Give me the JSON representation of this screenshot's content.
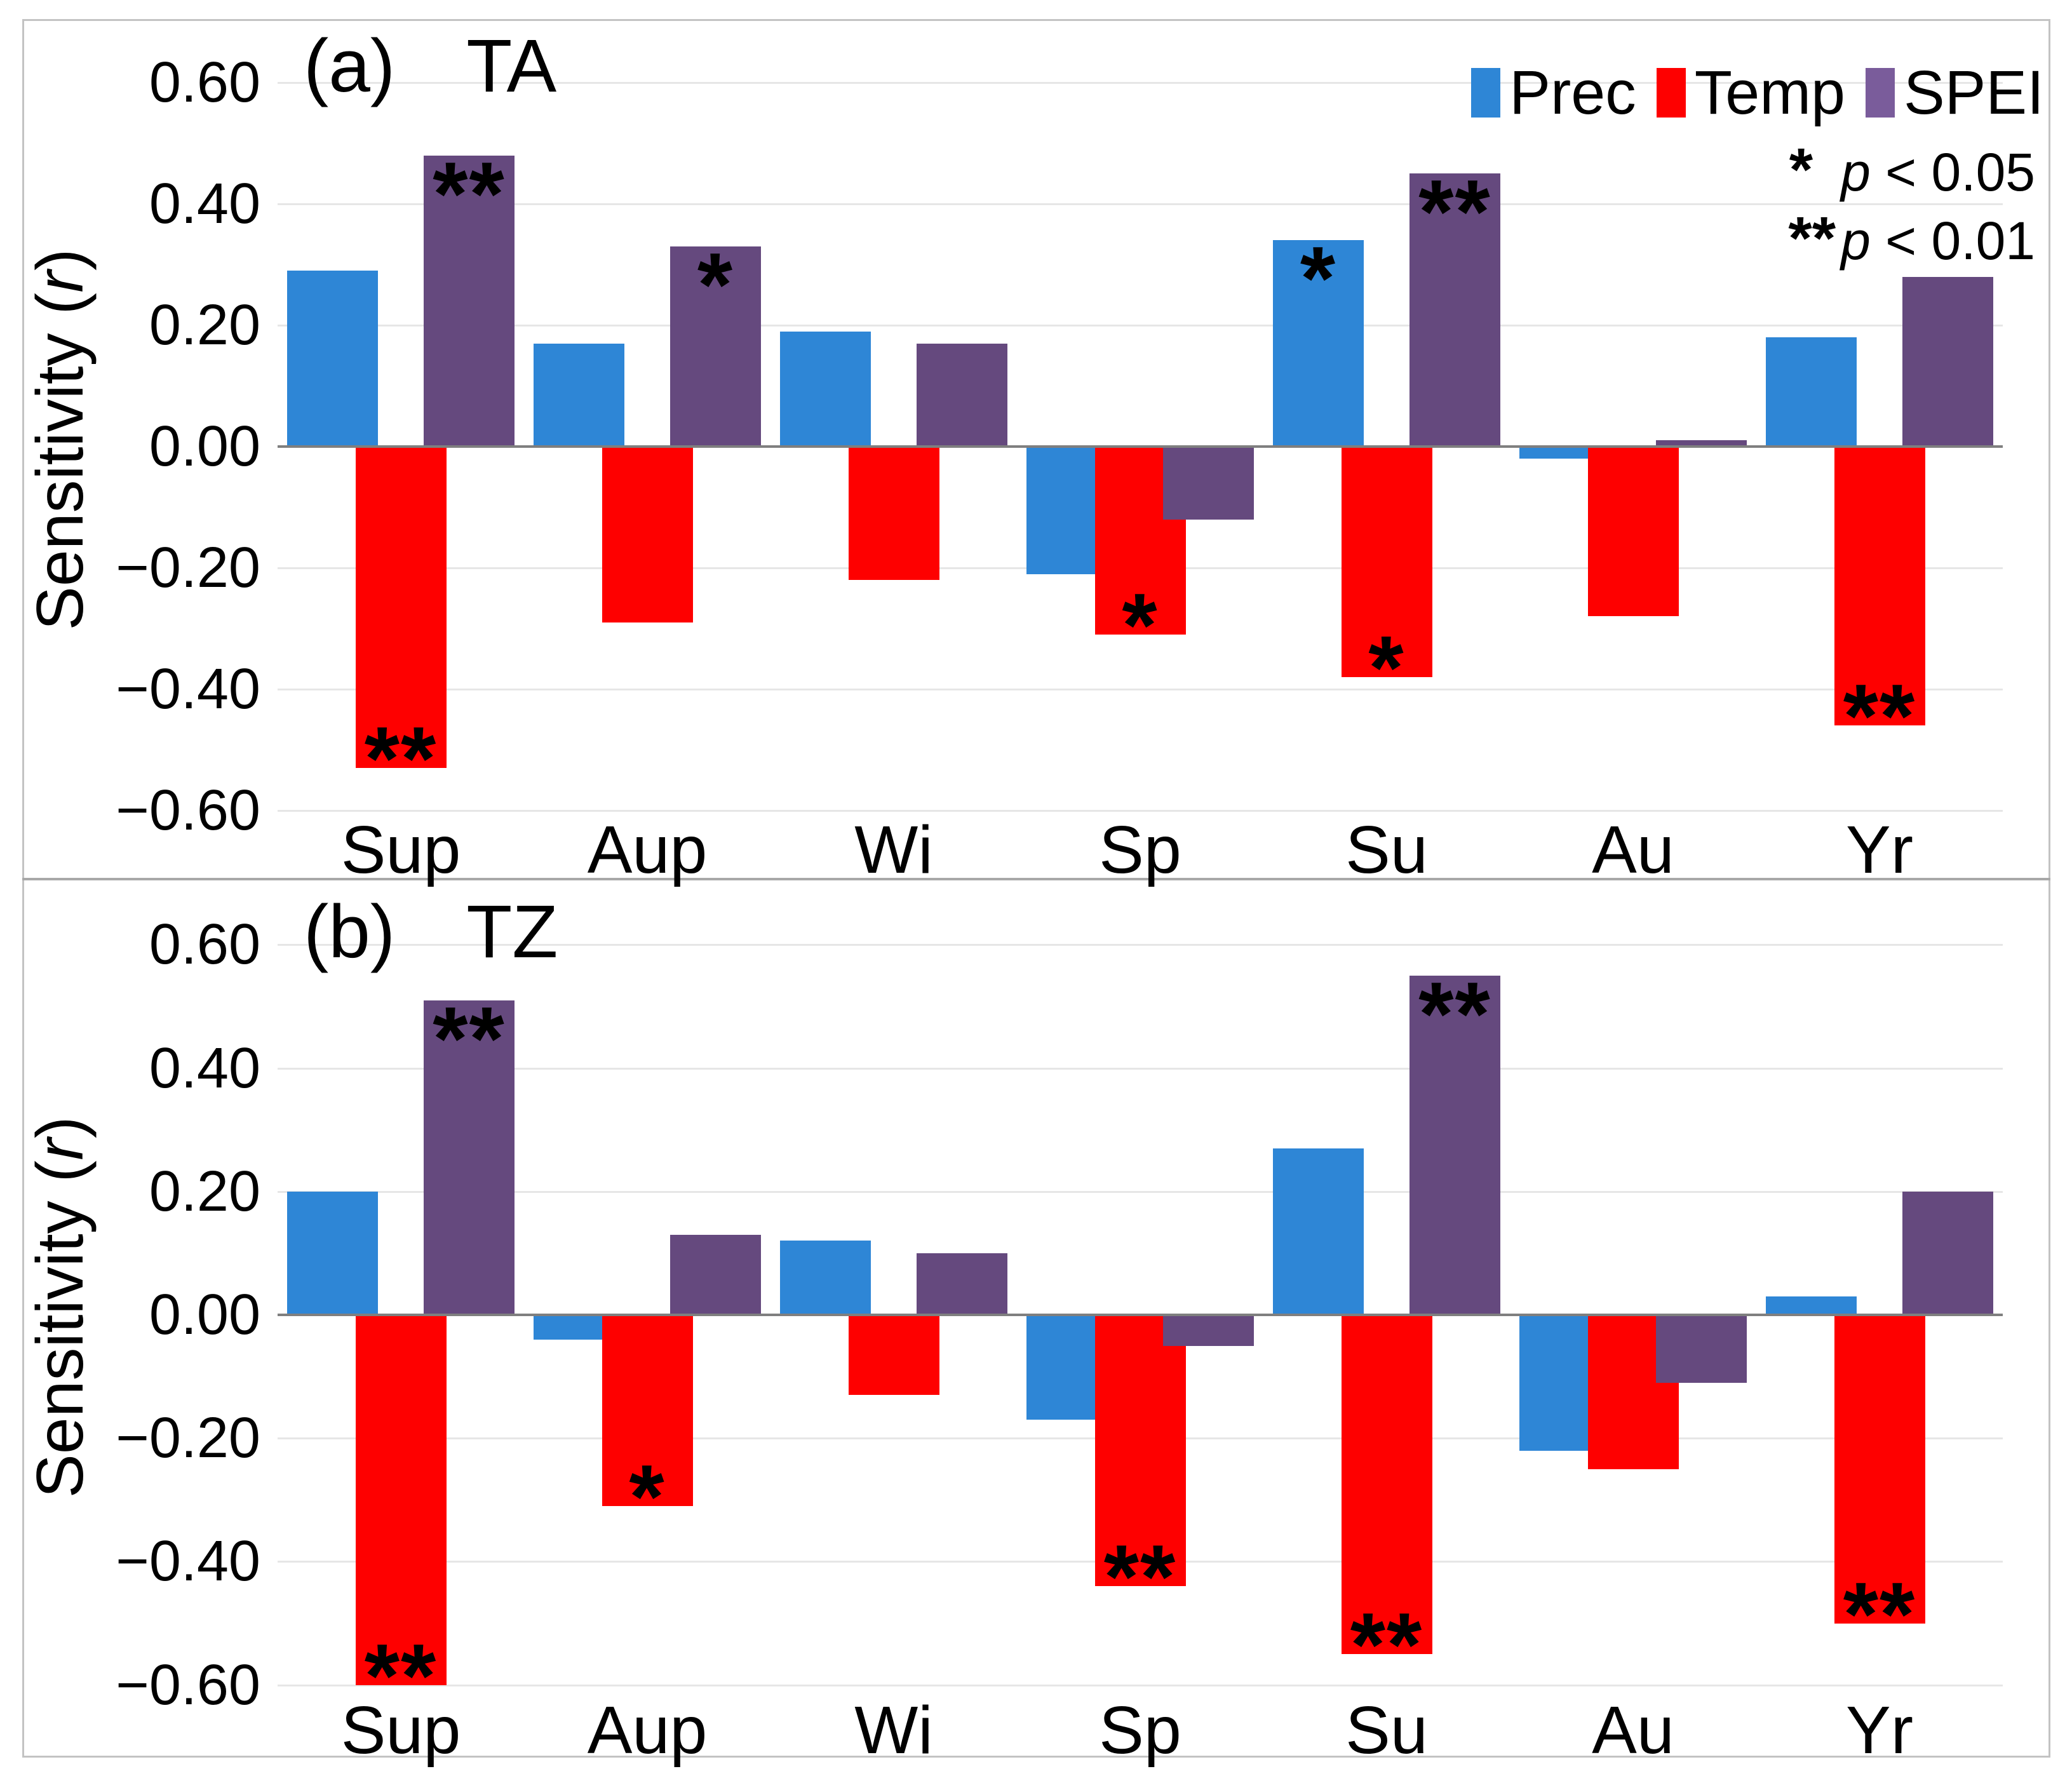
{
  "legend": {
    "items": [
      {
        "label": "Prec",
        "color": "#2E86D6"
      },
      {
        "label": "Temp",
        "color": "#FE0000"
      },
      {
        "label": "SPEI",
        "color": "#7A5C9B"
      }
    ]
  },
  "significance_notes": [
    {
      "symbol": "*",
      "p": "p",
      "rest": " < 0.05"
    },
    {
      "symbol": "**",
      "p": "p",
      "rest": " < 0.01"
    }
  ],
  "chart_data": [
    {
      "type": "bar",
      "panel_label": "(a)",
      "title": "TA",
      "ylabel": {
        "prefix": "Sensitivity (",
        "italic": "r",
        "suffix": ")"
      },
      "ylim": [
        -0.6,
        0.6
      ],
      "yticks": [
        0.6,
        0.4,
        0.2,
        0.0,
        -0.2,
        -0.4,
        -0.6
      ],
      "grid": "horizontal",
      "legend_position": "top-right",
      "categories": [
        "Sup",
        "Aup",
        "Wi",
        "Sp",
        "Su",
        "Au",
        "Yr"
      ],
      "series": [
        {
          "name": "Prec",
          "color": "#2E86D6",
          "values": [
            0.29,
            0.17,
            0.19,
            -0.21,
            0.34,
            -0.02,
            0.18
          ],
          "sig": [
            "",
            "",
            "",
            "",
            "*",
            "",
            ""
          ]
        },
        {
          "name": "Temp",
          "color": "#FE0000",
          "values": [
            -0.53,
            -0.29,
            -0.22,
            -0.31,
            -0.38,
            -0.28,
            -0.46
          ],
          "sig": [
            "**",
            "",
            "",
            "*",
            "*",
            "",
            "**"
          ]
        },
        {
          "name": "SPEI",
          "color": "#65497E",
          "values": [
            0.48,
            0.33,
            0.17,
            -0.12,
            0.45,
            0.01,
            0.28
          ],
          "sig": [
            "**",
            "*",
            "",
            "",
            "**",
            "",
            ""
          ]
        }
      ]
    },
    {
      "type": "bar",
      "panel_label": "(b)",
      "title": "TZ",
      "ylabel": {
        "prefix": "Sensitivity (",
        "italic": "r",
        "suffix": ")"
      },
      "ylim": [
        -0.6,
        0.6
      ],
      "yticks": [
        0.6,
        0.4,
        0.2,
        0.0,
        -0.2,
        -0.4,
        -0.6
      ],
      "grid": "horizontal",
      "categories": [
        "Sup",
        "Aup",
        "Wi",
        "Sp",
        "Su",
        "Au",
        "Yr"
      ],
      "series": [
        {
          "name": "Prec",
          "color": "#2E86D6",
          "values": [
            0.2,
            -0.04,
            0.12,
            -0.17,
            0.27,
            -0.22,
            0.03
          ],
          "sig": [
            "",
            "",
            "",
            "",
            "",
            "",
            ""
          ]
        },
        {
          "name": "Temp",
          "color": "#FE0000",
          "values": [
            -0.6,
            -0.31,
            -0.13,
            -0.44,
            -0.55,
            -0.25,
            -0.5
          ],
          "sig": [
            "**",
            "*",
            "",
            "**",
            "**",
            "",
            "**"
          ]
        },
        {
          "name": "SPEI",
          "color": "#65497E",
          "values": [
            0.51,
            0.13,
            0.1,
            -0.05,
            0.55,
            -0.11,
            0.2
          ],
          "sig": [
            "**",
            "",
            "",
            "",
            "**",
            "",
            ""
          ]
        }
      ]
    }
  ]
}
